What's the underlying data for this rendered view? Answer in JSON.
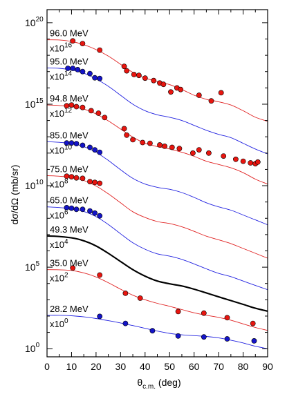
{
  "chart_data": {
    "type": "scatter",
    "xlabel_main": "θ",
    "xlabel_sub": "c.m.",
    "xlabel_tail": " (deg)",
    "ylabel": "dσ/dΩ (mb/sr)",
    "xlim": [
      0,
      90
    ],
    "ylog": true,
    "ylim_exp": [
      -0.5,
      20.8
    ],
    "x_ticks": [
      0,
      10,
      20,
      30,
      40,
      50,
      60,
      70,
      80,
      90
    ],
    "y_ticks": [
      {
        "base": "10",
        "exp": "0",
        "value_exp": 0
      },
      {
        "base": "10",
        "exp": "5",
        "value_exp": 5
      },
      {
        "base": "10",
        "exp": "10",
        "value_exp": 10
      },
      {
        "base": "10",
        "exp": "15",
        "value_exp": 15
      },
      {
        "base": "10",
        "exp": "20",
        "value_exp": 20
      }
    ],
    "series": [
      {
        "energy": "96.0 MeV",
        "scale_base": "x10",
        "scale_exp": "16",
        "color": "#e8150f",
        "line": "#e02020",
        "points": [
          [
            10.5,
            18.88
          ],
          [
            14.5,
            18.72
          ],
          [
            21.5,
            18.32
          ],
          [
            31.5,
            17.32
          ],
          [
            32.5,
            17.05
          ],
          [
            35.5,
            16.82
          ],
          [
            37.5,
            16.77
          ],
          [
            40,
            16.6
          ],
          [
            43.5,
            16.45
          ],
          [
            46,
            16.3
          ],
          [
            47.5,
            16.22
          ],
          [
            50.5,
            15.75
          ],
          [
            53,
            16.0
          ],
          [
            54.5,
            15.9
          ],
          [
            62,
            15.55
          ],
          [
            67,
            15.2
          ],
          [
            71,
            15.7
          ]
        ],
        "curve": [
          [
            0,
            18.95
          ],
          [
            5,
            18.94
          ],
          [
            10,
            18.85
          ],
          [
            15,
            18.65
          ],
          [
            20,
            18.35
          ],
          [
            25,
            17.95
          ],
          [
            30,
            17.45
          ],
          [
            35,
            16.95
          ],
          [
            40,
            16.6
          ],
          [
            45,
            16.4
          ],
          [
            50,
            16.2
          ],
          [
            55,
            15.9
          ],
          [
            60,
            15.55
          ],
          [
            65,
            15.3
          ],
          [
            70,
            15.15
          ],
          [
            75,
            14.95
          ],
          [
            80,
            14.6
          ],
          [
            85,
            14.2
          ],
          [
            90,
            13.95
          ]
        ]
      },
      {
        "energy": "95.0 MeV",
        "scale_base": "x10",
        "scale_exp": "14",
        "color": "#1414c8",
        "line": "#2020e0",
        "points": [
          [
            8.5,
            17.2
          ],
          [
            10.5,
            17.2
          ],
          [
            12.5,
            17.12
          ],
          [
            14.5,
            17.0
          ],
          [
            17.5,
            16.88
          ],
          [
            19.5,
            16.62
          ],
          [
            21.5,
            16.58
          ]
        ],
        "curve": [
          [
            0,
            17.22
          ],
          [
            5,
            17.2
          ],
          [
            10,
            17.1
          ],
          [
            15,
            16.9
          ],
          [
            20,
            16.55
          ],
          [
            25,
            16.1
          ],
          [
            30,
            15.55
          ],
          [
            35,
            15.0
          ],
          [
            40,
            14.6
          ],
          [
            45,
            14.35
          ],
          [
            50,
            14.2
          ],
          [
            55,
            14.0
          ],
          [
            60,
            13.7
          ],
          [
            65,
            13.4
          ],
          [
            70,
            13.15
          ],
          [
            75,
            12.95
          ],
          [
            80,
            12.6
          ],
          [
            85,
            12.25
          ],
          [
            90,
            11.95
          ]
        ]
      },
      {
        "energy": "94.8 MeV",
        "scale_base": "x10",
        "scale_exp": "12",
        "color": "#e8150f",
        "line": "#e02020",
        "points": [
          [
            8,
            14.9
          ],
          [
            10,
            14.95
          ],
          [
            12,
            14.85
          ],
          [
            14.5,
            14.8
          ],
          [
            18,
            14.6
          ],
          [
            21,
            14.45
          ],
          [
            23.5,
            14.18
          ],
          [
            31.5,
            13.5
          ],
          [
            32.5,
            13.1
          ],
          [
            35,
            12.82
          ],
          [
            39,
            12.65
          ],
          [
            42,
            12.6
          ],
          [
            46,
            12.5
          ],
          [
            48,
            12.42
          ],
          [
            51,
            12.35
          ],
          [
            54,
            12.28
          ],
          [
            59.5,
            12.0
          ],
          [
            62,
            12.2
          ],
          [
            66,
            12.0
          ],
          [
            72,
            11.82
          ],
          [
            77,
            11.62
          ],
          [
            80,
            11.5
          ],
          [
            83,
            11.4
          ],
          [
            85,
            11.35
          ],
          [
            86,
            11.45
          ]
        ],
        "curve": [
          [
            0,
            14.95
          ],
          [
            5,
            14.92
          ],
          [
            10,
            14.85
          ],
          [
            15,
            14.7
          ],
          [
            20,
            14.4
          ],
          [
            25,
            13.98
          ],
          [
            30,
            13.48
          ],
          [
            35,
            12.98
          ],
          [
            40,
            12.6
          ],
          [
            45,
            12.4
          ],
          [
            50,
            12.25
          ],
          [
            55,
            12.05
          ],
          [
            60,
            11.8
          ],
          [
            65,
            11.5
          ],
          [
            70,
            11.3
          ],
          [
            75,
            11.1
          ],
          [
            80,
            10.8
          ],
          [
            85,
            10.4
          ],
          [
            90,
            10.1
          ]
        ]
      },
      {
        "energy": "85.0 MeV",
        "scale_base": "x10",
        "scale_exp": "10",
        "color": "#1414c8",
        "line": "#2020e0",
        "points": [
          [
            8,
            12.62
          ],
          [
            10,
            12.62
          ],
          [
            12,
            12.58
          ],
          [
            14.5,
            12.48
          ],
          [
            17.5,
            12.35
          ],
          [
            19.5,
            12.2
          ],
          [
            21.5,
            12.05
          ]
        ],
        "curve": [
          [
            0,
            12.7
          ],
          [
            5,
            12.66
          ],
          [
            10,
            12.58
          ],
          [
            15,
            12.4
          ],
          [
            20,
            12.05
          ],
          [
            25,
            11.55
          ],
          [
            30,
            10.98
          ],
          [
            35,
            10.45
          ],
          [
            40,
            10.1
          ],
          [
            45,
            9.9
          ],
          [
            50,
            9.78
          ],
          [
            55,
            9.58
          ],
          [
            60,
            9.28
          ],
          [
            65,
            8.95
          ],
          [
            70,
            8.7
          ],
          [
            75,
            8.5
          ],
          [
            80,
            8.2
          ],
          [
            85,
            7.9
          ],
          [
            90,
            7.6
          ]
        ]
      },
      {
        "energy": "75.0 MeV",
        "scale_base": "x10",
        "scale_exp": "8",
        "color": "#e8150f",
        "line": "#e02020",
        "points": [
          [
            8,
            10.58
          ],
          [
            10,
            10.55
          ],
          [
            12,
            10.48
          ],
          [
            14.5,
            10.45
          ],
          [
            17.5,
            10.25
          ],
          [
            19.5,
            10.2
          ],
          [
            21.5,
            10.15
          ]
        ],
        "curve": [
          [
            0,
            10.62
          ],
          [
            5,
            10.58
          ],
          [
            10,
            10.5
          ],
          [
            15,
            10.32
          ],
          [
            20,
            9.98
          ],
          [
            25,
            9.5
          ],
          [
            30,
            8.95
          ],
          [
            35,
            8.4
          ],
          [
            40,
            8.05
          ],
          [
            45,
            7.8
          ],
          [
            50,
            7.68
          ],
          [
            55,
            7.48
          ],
          [
            60,
            7.2
          ],
          [
            65,
            6.9
          ],
          [
            70,
            6.68
          ],
          [
            75,
            6.45
          ],
          [
            80,
            6.15
          ],
          [
            85,
            5.85
          ],
          [
            90,
            5.55
          ]
        ]
      },
      {
        "energy": "65.0 MeV",
        "scale_base": "x10",
        "scale_exp": "6",
        "color": "#1414c8",
        "line": "#2020e0",
        "points": [
          [
            8,
            8.65
          ],
          [
            10,
            8.62
          ],
          [
            12,
            8.55
          ],
          [
            14.5,
            8.55
          ],
          [
            17.5,
            8.45
          ],
          [
            19.5,
            8.32
          ],
          [
            21.5,
            8.15
          ]
        ],
        "curve": [
          [
            0,
            8.7
          ],
          [
            5,
            8.66
          ],
          [
            10,
            8.58
          ],
          [
            15,
            8.42
          ],
          [
            20,
            8.1
          ],
          [
            25,
            7.62
          ],
          [
            30,
            7.05
          ],
          [
            35,
            6.5
          ],
          [
            40,
            6.1
          ],
          [
            45,
            5.82
          ],
          [
            50,
            5.68
          ],
          [
            55,
            5.48
          ],
          [
            60,
            5.2
          ],
          [
            65,
            4.9
          ],
          [
            70,
            4.62
          ],
          [
            75,
            4.42
          ],
          [
            80,
            4.15
          ],
          [
            85,
            3.88
          ],
          [
            90,
            3.62
          ]
        ]
      },
      {
        "energy": "49.3 MeV",
        "scale_base": "x10",
        "scale_exp": "4",
        "color": "#000000",
        "line": "#000000",
        "points": [],
        "curve": [
          [
            0,
            6.92
          ],
          [
            5,
            6.88
          ],
          [
            10,
            6.8
          ],
          [
            15,
            6.62
          ],
          [
            20,
            6.3
          ],
          [
            25,
            5.85
          ],
          [
            30,
            5.35
          ],
          [
            35,
            4.85
          ],
          [
            40,
            4.45
          ],
          [
            45,
            4.15
          ],
          [
            50,
            3.98
          ],
          [
            55,
            3.85
          ],
          [
            60,
            3.65
          ],
          [
            65,
            3.42
          ],
          [
            70,
            3.18
          ],
          [
            75,
            2.95
          ],
          [
            80,
            2.72
          ],
          [
            85,
            2.48
          ],
          [
            90,
            2.3
          ]
        ]
      },
      {
        "energy": "35.0 MeV",
        "scale_base": "x10",
        "scale_exp": "2",
        "color": "#e8150f",
        "line": "#e02020",
        "points": [
          [
            10.5,
            4.95
          ],
          [
            21.5,
            4.52
          ],
          [
            32,
            3.4
          ],
          [
            38,
            3.1
          ],
          [
            53.5,
            2.28
          ],
          [
            64,
            2.18
          ],
          [
            73.5,
            1.9
          ],
          [
            84,
            1.55
          ]
        ],
        "curve": [
          [
            0,
            4.85
          ],
          [
            5,
            4.84
          ],
          [
            10,
            4.8
          ],
          [
            15,
            4.65
          ],
          [
            20,
            4.4
          ],
          [
            25,
            4.05
          ],
          [
            30,
            3.65
          ],
          [
            35,
            3.28
          ],
          [
            40,
            3.0
          ],
          [
            45,
            2.78
          ],
          [
            50,
            2.6
          ],
          [
            55,
            2.4
          ],
          [
            60,
            2.2
          ],
          [
            65,
            2.05
          ],
          [
            70,
            1.92
          ],
          [
            75,
            1.75
          ],
          [
            80,
            1.52
          ],
          [
            85,
            1.3
          ],
          [
            90,
            1.12
          ]
        ]
      },
      {
        "energy": "28.2 MeV",
        "scale_base": "x10",
        "scale_exp": "0",
        "color": "#1414c8",
        "line": "#2020e0",
        "points": [
          [
            21.5,
            1.98
          ],
          [
            32,
            1.55
          ],
          [
            43,
            1.1
          ],
          [
            53.5,
            0.78
          ],
          [
            64,
            0.72
          ],
          [
            73.5,
            0.6
          ],
          [
            84.5,
            0.48
          ]
        ],
        "curve": [
          [
            0,
            2.05
          ],
          [
            5,
            2.05
          ],
          [
            10,
            2.02
          ],
          [
            15,
            1.95
          ],
          [
            20,
            1.85
          ],
          [
            25,
            1.72
          ],
          [
            30,
            1.58
          ],
          [
            35,
            1.42
          ],
          [
            40,
            1.25
          ],
          [
            45,
            1.08
          ],
          [
            50,
            0.94
          ],
          [
            55,
            0.85
          ],
          [
            60,
            0.8
          ],
          [
            65,
            0.75
          ],
          [
            70,
            0.66
          ],
          [
            75,
            0.52
          ],
          [
            80,
            0.35
          ],
          [
            85,
            0.15
          ],
          [
            90,
            0.0
          ]
        ]
      }
    ]
  }
}
